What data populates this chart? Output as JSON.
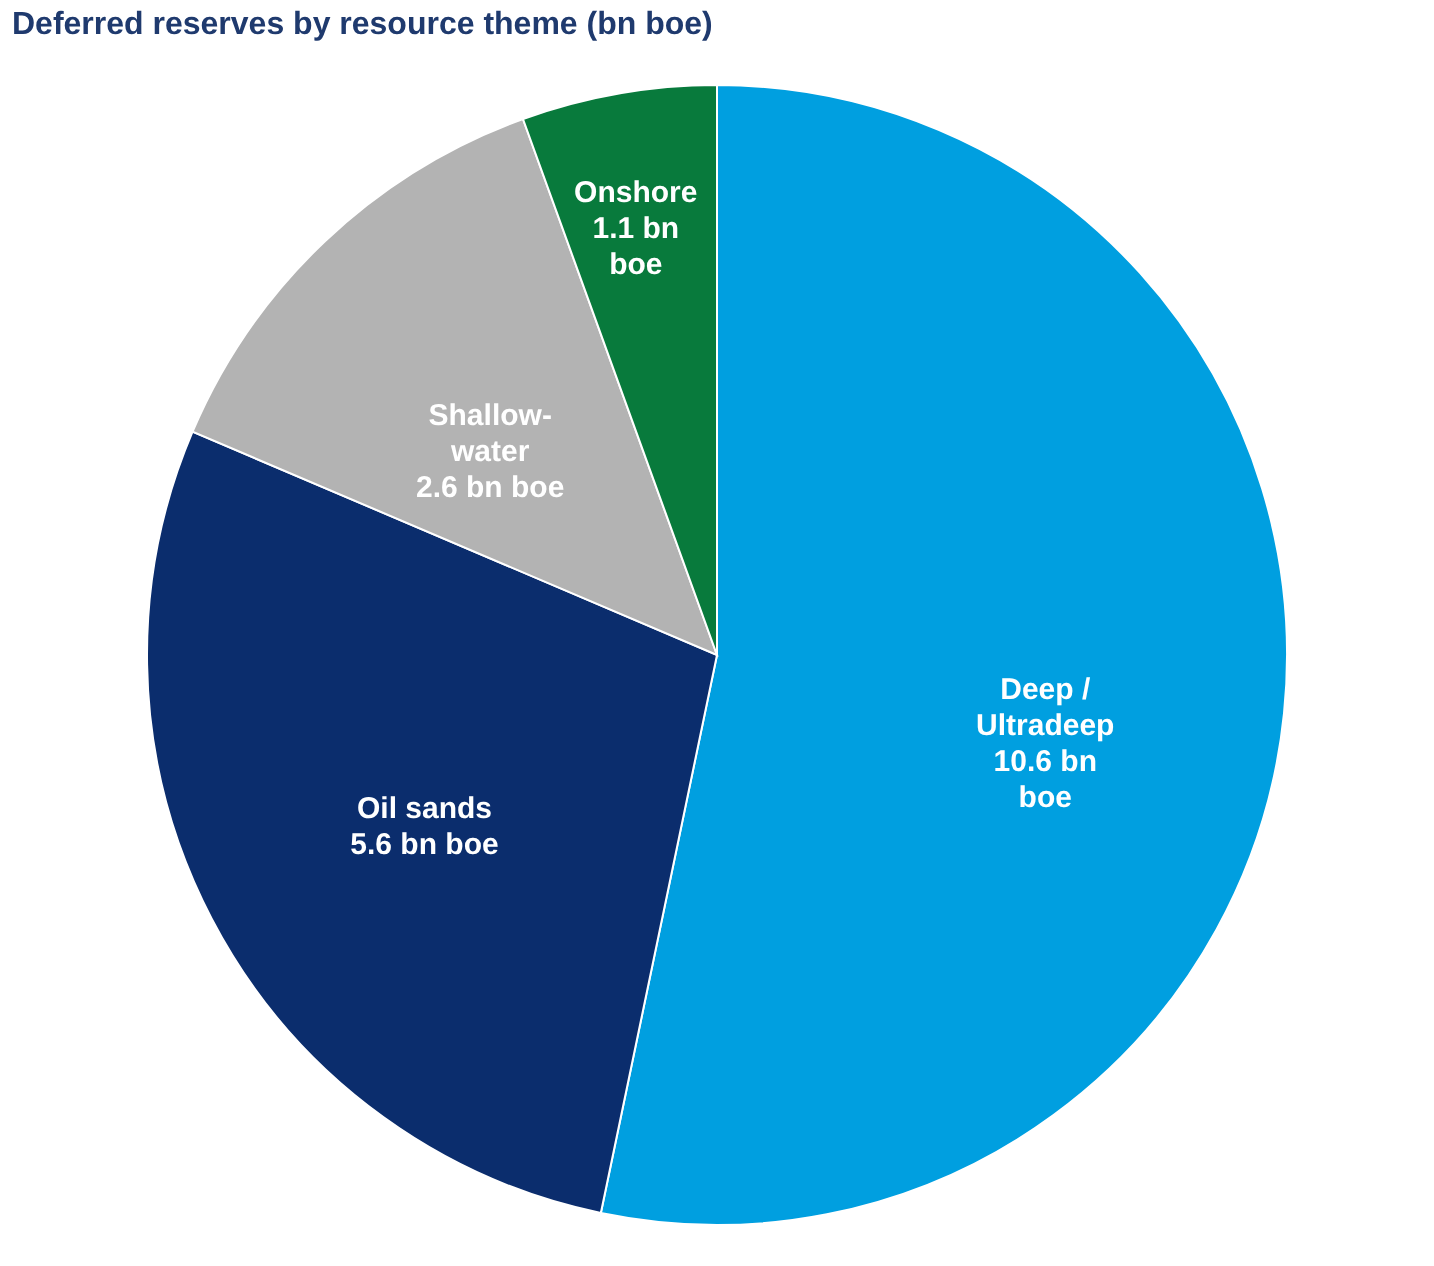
{
  "chart_data": {
    "type": "pie",
    "title": "Deferred reserves by resource theme (bn boe)",
    "categories": [
      "Deep / Ultradeep",
      "Oil sands",
      "Shallow-water",
      "Onshore"
    ],
    "values": [
      10.6,
      5.6,
      2.6,
      1.1
    ],
    "value_labels": [
      "10.6 bn boe",
      "5.6 bn boe",
      "2.6 bn boe",
      "1.1 bn boe"
    ],
    "colors": [
      "#009fe0",
      "#0b2d6d",
      "#b3b3b3",
      "#087a3c"
    ],
    "legend": false
  }
}
